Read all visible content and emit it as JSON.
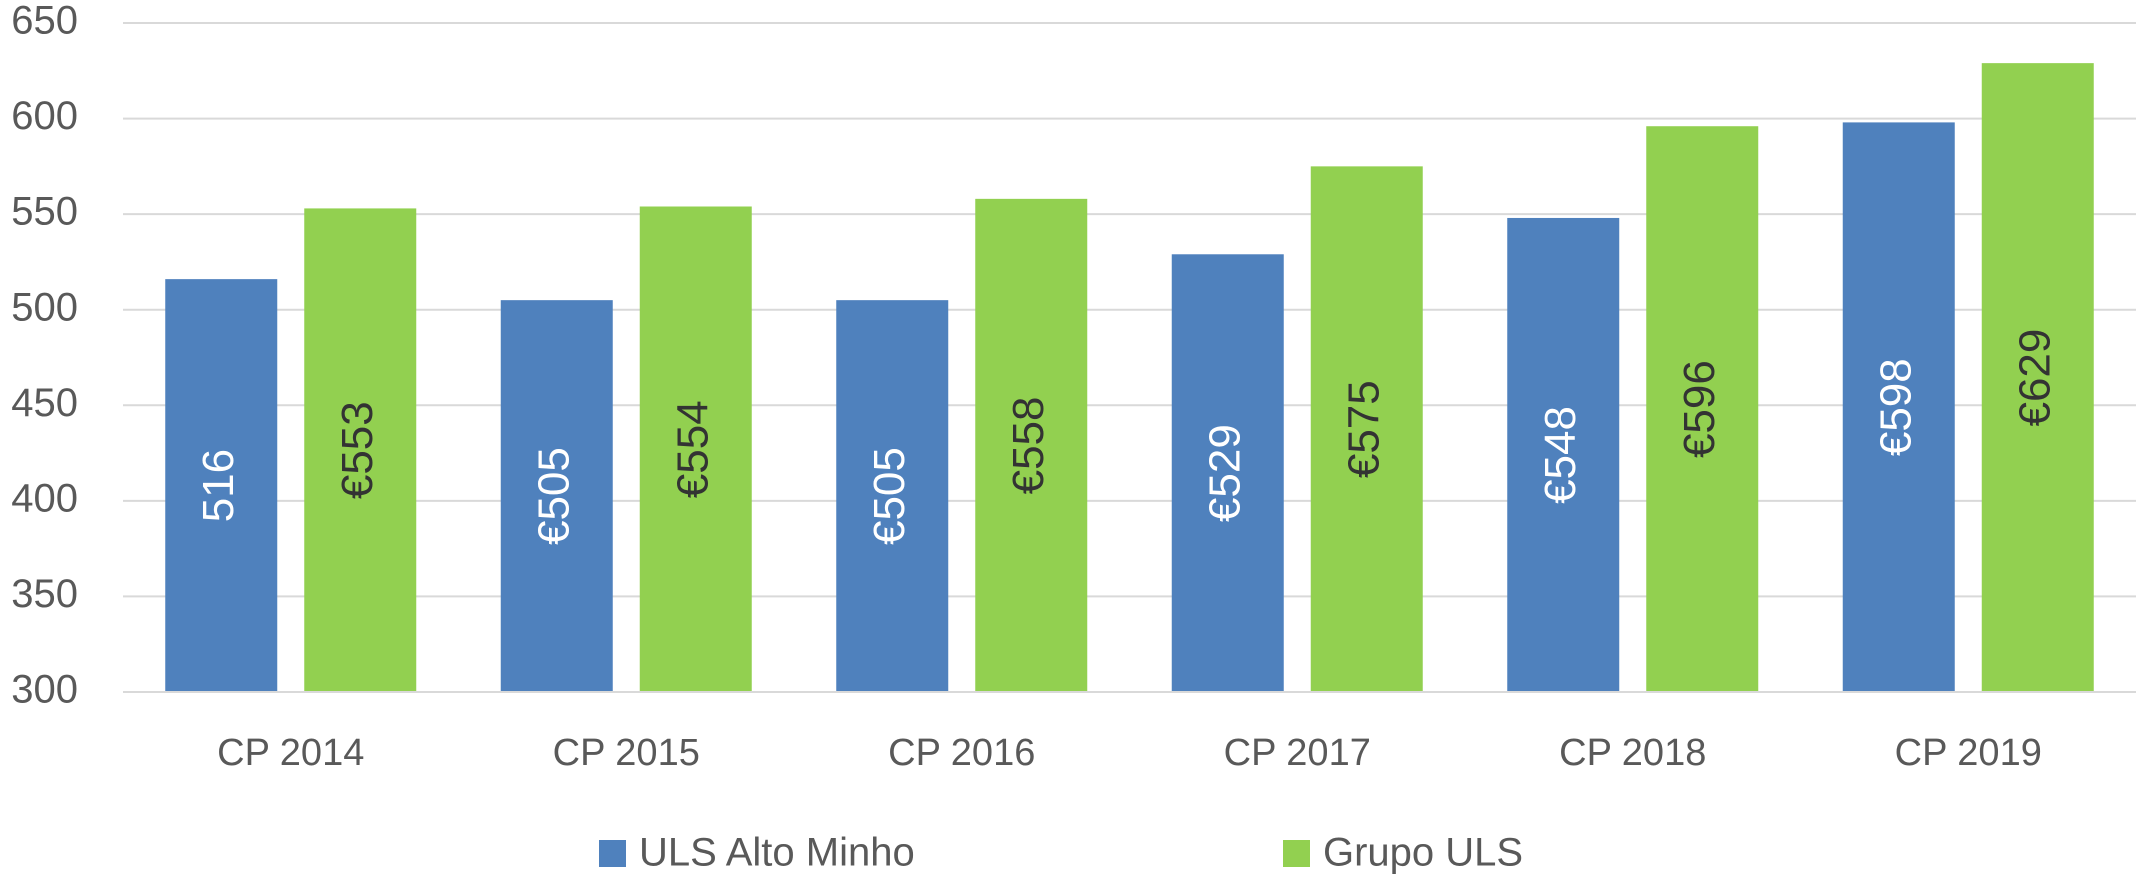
{
  "chart_data": {
    "type": "bar",
    "categories": [
      "CP 2014",
      "CP 2015",
      "CP 2016",
      "CP 2017",
      "CP 2018",
      "CP 2019"
    ],
    "series": [
      {
        "name": "ULS Alto Minho",
        "color": "#4f81bd",
        "values": [
          516,
          505,
          505,
          529,
          548,
          598
        ],
        "value_labels": [
          "516",
          "€505",
          "€505",
          "€529",
          "€548",
          "€598"
        ]
      },
      {
        "name": "Grupo ULS",
        "color": "#92d050",
        "values": [
          553,
          554,
          558,
          575,
          596,
          629
        ],
        "value_labels": [
          "€553",
          "€554",
          "€558",
          "€575",
          "€596",
          "€629"
        ]
      }
    ],
    "ylim": [
      300,
      650
    ],
    "yticks": [
      300,
      350,
      400,
      450,
      500,
      550,
      600,
      650
    ],
    "grid": true,
    "legend": "bottom"
  }
}
